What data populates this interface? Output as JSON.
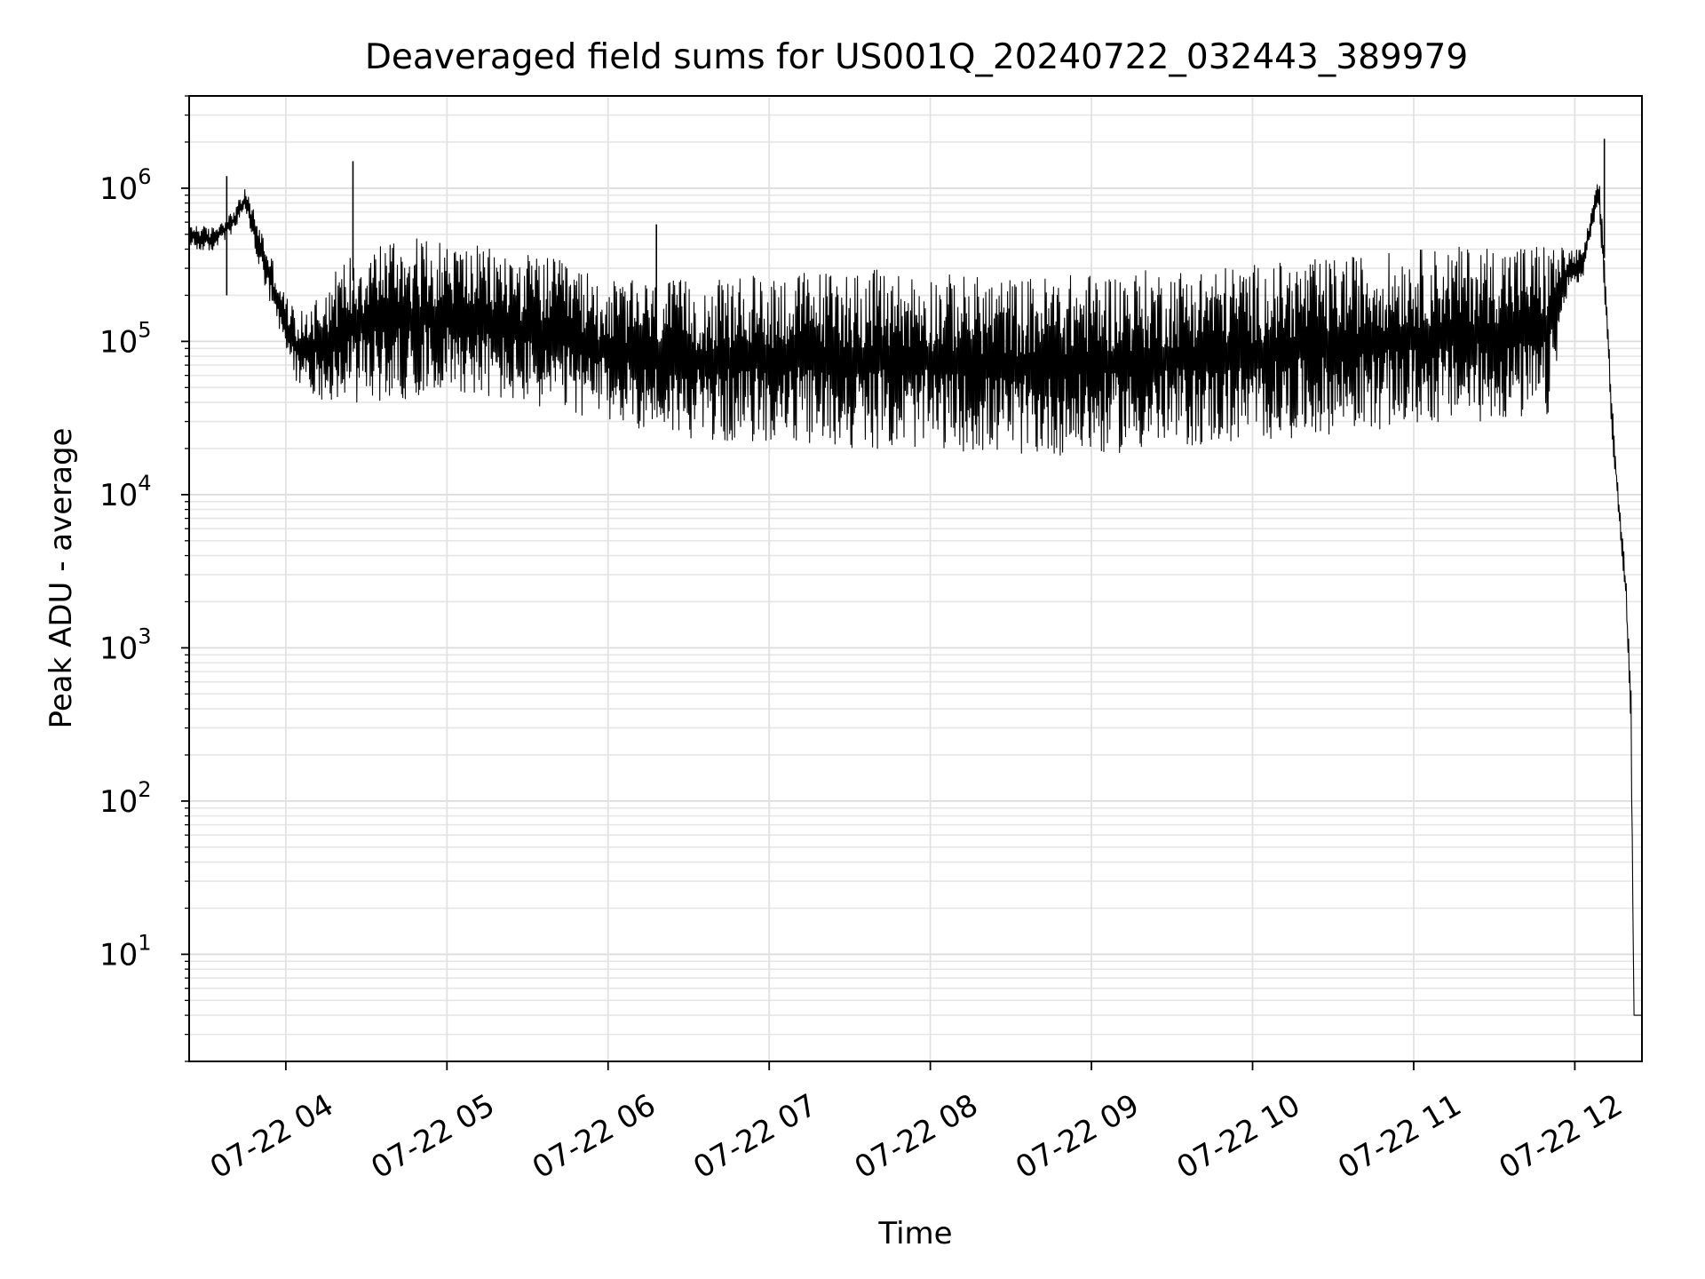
{
  "chart_data": {
    "type": "line",
    "title": "Deaveraged field sums for US001Q_20240722_032443_389979",
    "xlabel": "Time",
    "ylabel": "Peak ADU - average",
    "yscale": "log",
    "grid": true,
    "line_color": "#000000",
    "xlim": [
      "2024-07-22 03:24",
      "2024-07-22 12:25"
    ],
    "ylim": [
      2,
      4000000
    ],
    "x_ticks": [
      "07-22 04",
      "07-22 05",
      "07-22 06",
      "07-22 07",
      "07-22 08",
      "07-22 09",
      "07-22 10",
      "07-22 11",
      "07-22 12"
    ],
    "y_ticks": [
      {
        "base": "10",
        "exp": "1",
        "value": 10
      },
      {
        "base": "10",
        "exp": "2",
        "value": 100
      },
      {
        "base": "10",
        "exp": "3",
        "value": 1000
      },
      {
        "base": "10",
        "exp": "4",
        "value": 10000
      },
      {
        "base": "10",
        "exp": "5",
        "value": 100000
      },
      {
        "base": "10",
        "exp": "6",
        "value": 1000000
      }
    ],
    "series": [
      {
        "style": "oscillating envelope",
        "x": [
          "2024-07-22 03:24",
          "2024-07-22 03:32",
          "2024-07-22 03:40",
          "2024-07-22 03:45",
          "2024-07-22 03:50",
          "2024-07-22 03:55",
          "2024-07-22 04:00",
          "2024-07-22 04:05",
          "2024-07-22 04:15",
          "2024-07-22 04:25",
          "2024-07-22 04:40",
          "2024-07-22 05:00",
          "2024-07-22 05:20",
          "2024-07-22 05:40",
          "2024-07-22 06:00",
          "2024-07-22 06:20",
          "2024-07-22 06:40",
          "2024-07-22 07:00",
          "2024-07-22 07:30",
          "2024-07-22 08:00",
          "2024-07-22 08:30",
          "2024-07-22 09:00",
          "2024-07-22 09:30",
          "2024-07-22 10:00",
          "2024-07-22 10:30",
          "2024-07-22 11:00",
          "2024-07-22 11:30",
          "2024-07-22 11:50",
          "2024-07-22 11:57",
          "2024-07-22 12:03",
          "2024-07-22 12:06",
          "2024-07-22 12:09",
          "2024-07-22 12:11",
          "2024-07-22 12:14",
          "2024-07-22 12:16",
          "2024-07-22 12:19",
          "2024-07-22 12:21",
          "2024-07-22 12:22",
          "2024-07-22 12:25"
        ],
        "upper": [
          600000,
          550000,
          700000,
          1000000,
          600000,
          350000,
          200000,
          150000,
          250000,
          400000,
          500000,
          450000,
          400000,
          350000,
          250000,
          250000,
          250000,
          280000,
          300000,
          280000,
          260000,
          280000,
          300000,
          320000,
          350000,
          400000,
          430000,
          450000,
          400000,
          400000,
          700000,
          1200000,
          400000,
          40000,
          12000,
          3000,
          500,
          4,
          4
        ],
        "lower": [
          400000,
          380000,
          500000,
          700000,
          300000,
          150000,
          80000,
          50000,
          40000,
          40000,
          40000,
          50000,
          40000,
          35000,
          30000,
          25000,
          22000,
          22000,
          20000,
          20000,
          18000,
          18000,
          20000,
          22000,
          25000,
          28000,
          30000,
          30000,
          200000,
          250000,
          500000,
          700000,
          200000,
          20000,
          8000,
          2000,
          200,
          4,
          4
        ]
      }
    ],
    "peaks": [
      {
        "x": "2024-07-22 03:38",
        "y": 1200000
      },
      {
        "x": "2024-07-22 04:25",
        "y": 1500000
      },
      {
        "x": "2024-07-22 06:18",
        "y": 580000
      },
      {
        "x": "2024-07-22 12:11",
        "y": 2100000
      }
    ]
  }
}
